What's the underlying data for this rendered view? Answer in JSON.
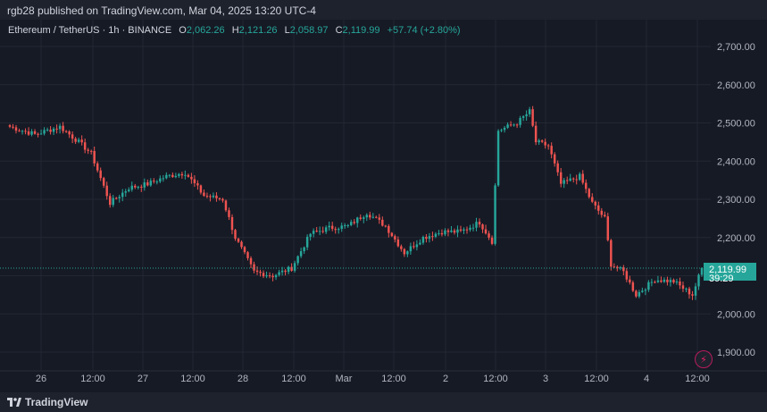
{
  "header": {
    "publisher_line": "rgb28 published on TradingView.com, Mar 04, 2025 13:20 UTC-4"
  },
  "legend": {
    "symbol": "Ethereum / TetherUS · 1h · BINANCE",
    "open_label": "O",
    "open": "2,062.26",
    "high_label": "H",
    "high": "2,121.26",
    "low_label": "L",
    "low": "2,058.97",
    "close_label": "C",
    "close": "2,119.99",
    "change": "+57.74 (+2.80%)"
  },
  "price_tag": {
    "price": "2,119.99",
    "countdown": "39:29"
  },
  "footer": {
    "brand": "TradingView"
  },
  "colors": {
    "up": "#26a69a",
    "down": "#ef5350",
    "background": "#161a25",
    "grid": "#232732",
    "text": "#b2b5be"
  },
  "chart_data": {
    "type": "candlestick",
    "title": "Ethereum / TetherUS · 1h · BINANCE",
    "x_tick_labels": [
      "26",
      "12:00",
      "27",
      "12:00",
      "28",
      "12:00",
      "Mar",
      "12:00",
      "2",
      "12:00",
      "3",
      "12:00",
      "4",
      "12:00"
    ],
    "y_tick_labels": [
      "1,900.00",
      "2,000.00",
      "2,100.00",
      "2,200.00",
      "2,300.00",
      "2,400.00",
      "2,500.00",
      "2,600.00",
      "2,700.00"
    ],
    "ylim": [
      1850,
      2750
    ],
    "grid": true,
    "last_price": 2119.99,
    "anchors": [
      {
        "x": 0,
        "close": 2490
      },
      {
        "x": 8,
        "close": 2470
      },
      {
        "x": 16,
        "close": 2490
      },
      {
        "x": 22,
        "close": 2450
      },
      {
        "x": 26,
        "close": 2420
      },
      {
        "x": 32,
        "close": 2290
      },
      {
        "x": 38,
        "close": 2330
      },
      {
        "x": 44,
        "close": 2340
      },
      {
        "x": 50,
        "close": 2360
      },
      {
        "x": 56,
        "close": 2370
      },
      {
        "x": 62,
        "close": 2310
      },
      {
        "x": 68,
        "close": 2300
      },
      {
        "x": 72,
        "close": 2200
      },
      {
        "x": 78,
        "close": 2110
      },
      {
        "x": 84,
        "close": 2100
      },
      {
        "x": 90,
        "close": 2120
      },
      {
        "x": 96,
        "close": 2210
      },
      {
        "x": 102,
        "close": 2225
      },
      {
        "x": 108,
        "close": 2230
      },
      {
        "x": 114,
        "close": 2265
      },
      {
        "x": 120,
        "close": 2230
      },
      {
        "x": 126,
        "close": 2160
      },
      {
        "x": 132,
        "close": 2200
      },
      {
        "x": 138,
        "close": 2215
      },
      {
        "x": 144,
        "close": 2215
      },
      {
        "x": 150,
        "close": 2240
      },
      {
        "x": 154,
        "close": 2190
      },
      {
        "x": 156,
        "close": 2480
      },
      {
        "x": 162,
        "close": 2500
      },
      {
        "x": 166,
        "close": 2530
      },
      {
        "x": 168,
        "close": 2450
      },
      {
        "x": 172,
        "close": 2440
      },
      {
        "x": 176,
        "close": 2340
      },
      {
        "x": 182,
        "close": 2360
      },
      {
        "x": 186,
        "close": 2290
      },
      {
        "x": 190,
        "close": 2250
      },
      {
        "x": 192,
        "close": 2130
      },
      {
        "x": 196,
        "close": 2110
      },
      {
        "x": 200,
        "close": 2050
      },
      {
        "x": 206,
        "close": 2090
      },
      {
        "x": 212,
        "close": 2085
      },
      {
        "x": 218,
        "close": 2050
      },
      {
        "x": 221,
        "close": 2120
      }
    ],
    "candle_count": 222
  }
}
